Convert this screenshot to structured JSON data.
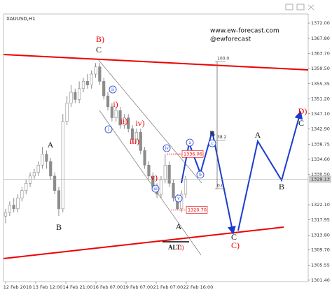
{
  "chart_data": {
    "type": "candlestick",
    "title": "XAUUSD,H1",
    "watermark": [
      "www.ew-forecast.com",
      "@ewforecast"
    ],
    "x_labels": [
      "12 Feb 2018",
      "13 Feb 12:00",
      "14 Feb 21:00",
      "16 Feb 07:00",
      "19 Feb 07:00",
      "21 Feb 07:00",
      "22 Feb 16:00"
    ],
    "open": [
      1319,
      1320,
      1322,
      1321,
      1324,
      1326,
      1328,
      1330,
      1331,
      1333,
      1336,
      1334,
      1330,
      1326,
      1321,
      1345,
      1350,
      1353,
      1351,
      1354,
      1356,
      1355,
      1358,
      1360,
      1356,
      1352,
      1349,
      1346,
      1348,
      1344,
      1346,
      1343,
      1340,
      1342,
      1337,
      1333,
      1330,
      1327,
      1325,
      1329,
      1333,
      1328,
      1324,
      1321,
      1325
    ],
    "high": [
      1321,
      1323,
      1324,
      1325,
      1327,
      1329,
      1331,
      1332,
      1334,
      1338,
      1337,
      1335,
      1331,
      1327,
      1347,
      1352,
      1355,
      1354,
      1356,
      1357,
      1358,
      1359,
      1361,
      1361,
      1357,
      1353,
      1350,
      1349,
      1349,
      1347,
      1347,
      1344,
      1343,
      1343,
      1338,
      1334,
      1331,
      1328,
      1330,
      1336,
      1334,
      1329,
      1325,
      1326,
      1330
    ],
    "low": [
      1317,
      1319,
      1320,
      1320,
      1323,
      1325,
      1327,
      1329,
      1330,
      1332,
      1332,
      1329,
      1325,
      1319,
      1320,
      1344,
      1349,
      1350,
      1350,
      1353,
      1354,
      1354,
      1357,
      1355,
      1351,
      1348,
      1345,
      1345,
      1343,
      1343,
      1342,
      1339,
      1339,
      1336,
      1332,
      1329,
      1326,
      1324,
      1324,
      1328,
      1327,
      1323,
      1320.7,
      1320,
      1324
    ],
    "close": [
      1320,
      1322,
      1321,
      1324,
      1326,
      1328,
      1330,
      1331,
      1333,
      1336,
      1334,
      1330,
      1326,
      1321,
      1345,
      1350,
      1353,
      1351,
      1354,
      1356,
      1355,
      1358,
      1360,
      1356,
      1352,
      1349,
      1346,
      1348,
      1344,
      1346,
      1343,
      1340,
      1342,
      1337,
      1333,
      1330,
      1327,
      1325,
      1329,
      1333,
      1328,
      1324,
      1321,
      1325,
      1329.13
    ],
    "color": "#8c8c8c",
    "ylim": [
      1301.0,
      1374.5
    ],
    "yticks": [
      {
        "value": 1372.0,
        "label": "1372.00"
      },
      {
        "value": 1367.8,
        "label": "1367.80"
      },
      {
        "value": 1363.7,
        "label": "1363.70"
      },
      {
        "value": 1359.5,
        "label": "1359.50"
      },
      {
        "value": 1355.35,
        "label": "1355.35"
      },
      {
        "value": 1351.2,
        "label": "1351.20"
      },
      {
        "value": 1347.1,
        "label": "1347.10"
      },
      {
        "value": 1342.9,
        "label": "1342.90"
      },
      {
        "value": 1338.75,
        "label": "1338.75"
      },
      {
        "value": 1334.6,
        "label": "1334.60"
      },
      {
        "value": 1330.5,
        "label": "1330.50"
      },
      {
        "value": 1322.1,
        "label": "1322.10"
      },
      {
        "value": 1317.95,
        "label": "1317.95"
      },
      {
        "value": 1313.8,
        "label": "1313.80"
      },
      {
        "value": 1309.7,
        "label": "1309.70"
      },
      {
        "value": 1305.55,
        "label": "1305.55"
      },
      {
        "value": 1301.4,
        "label": "1301.40"
      }
    ],
    "current_price": {
      "value": 1329.13,
      "label": "1329.13"
    },
    "price_labels": [
      {
        "value": 1336.06,
        "label": "1336.06"
      },
      {
        "value": 1320.7,
        "label": "1320.70"
      }
    ],
    "fib_levels": [
      {
        "value": 100,
        "label": "100.0"
      },
      {
        "value": 38.2,
        "label": "38.2"
      },
      {
        "value": 0,
        "label": "0.0"
      }
    ],
    "wave_labels": [
      "B)",
      "C",
      "A",
      "B",
      "ii",
      "i)",
      "i",
      "ii)",
      "iv)",
      "iii)",
      "iv",
      "v)",
      "iii",
      "v",
      "A",
      "a",
      "b",
      "c",
      "B",
      "C",
      "C)",
      "A",
      "B",
      "D)",
      "C",
      "ALT:",
      "C)"
    ]
  }
}
